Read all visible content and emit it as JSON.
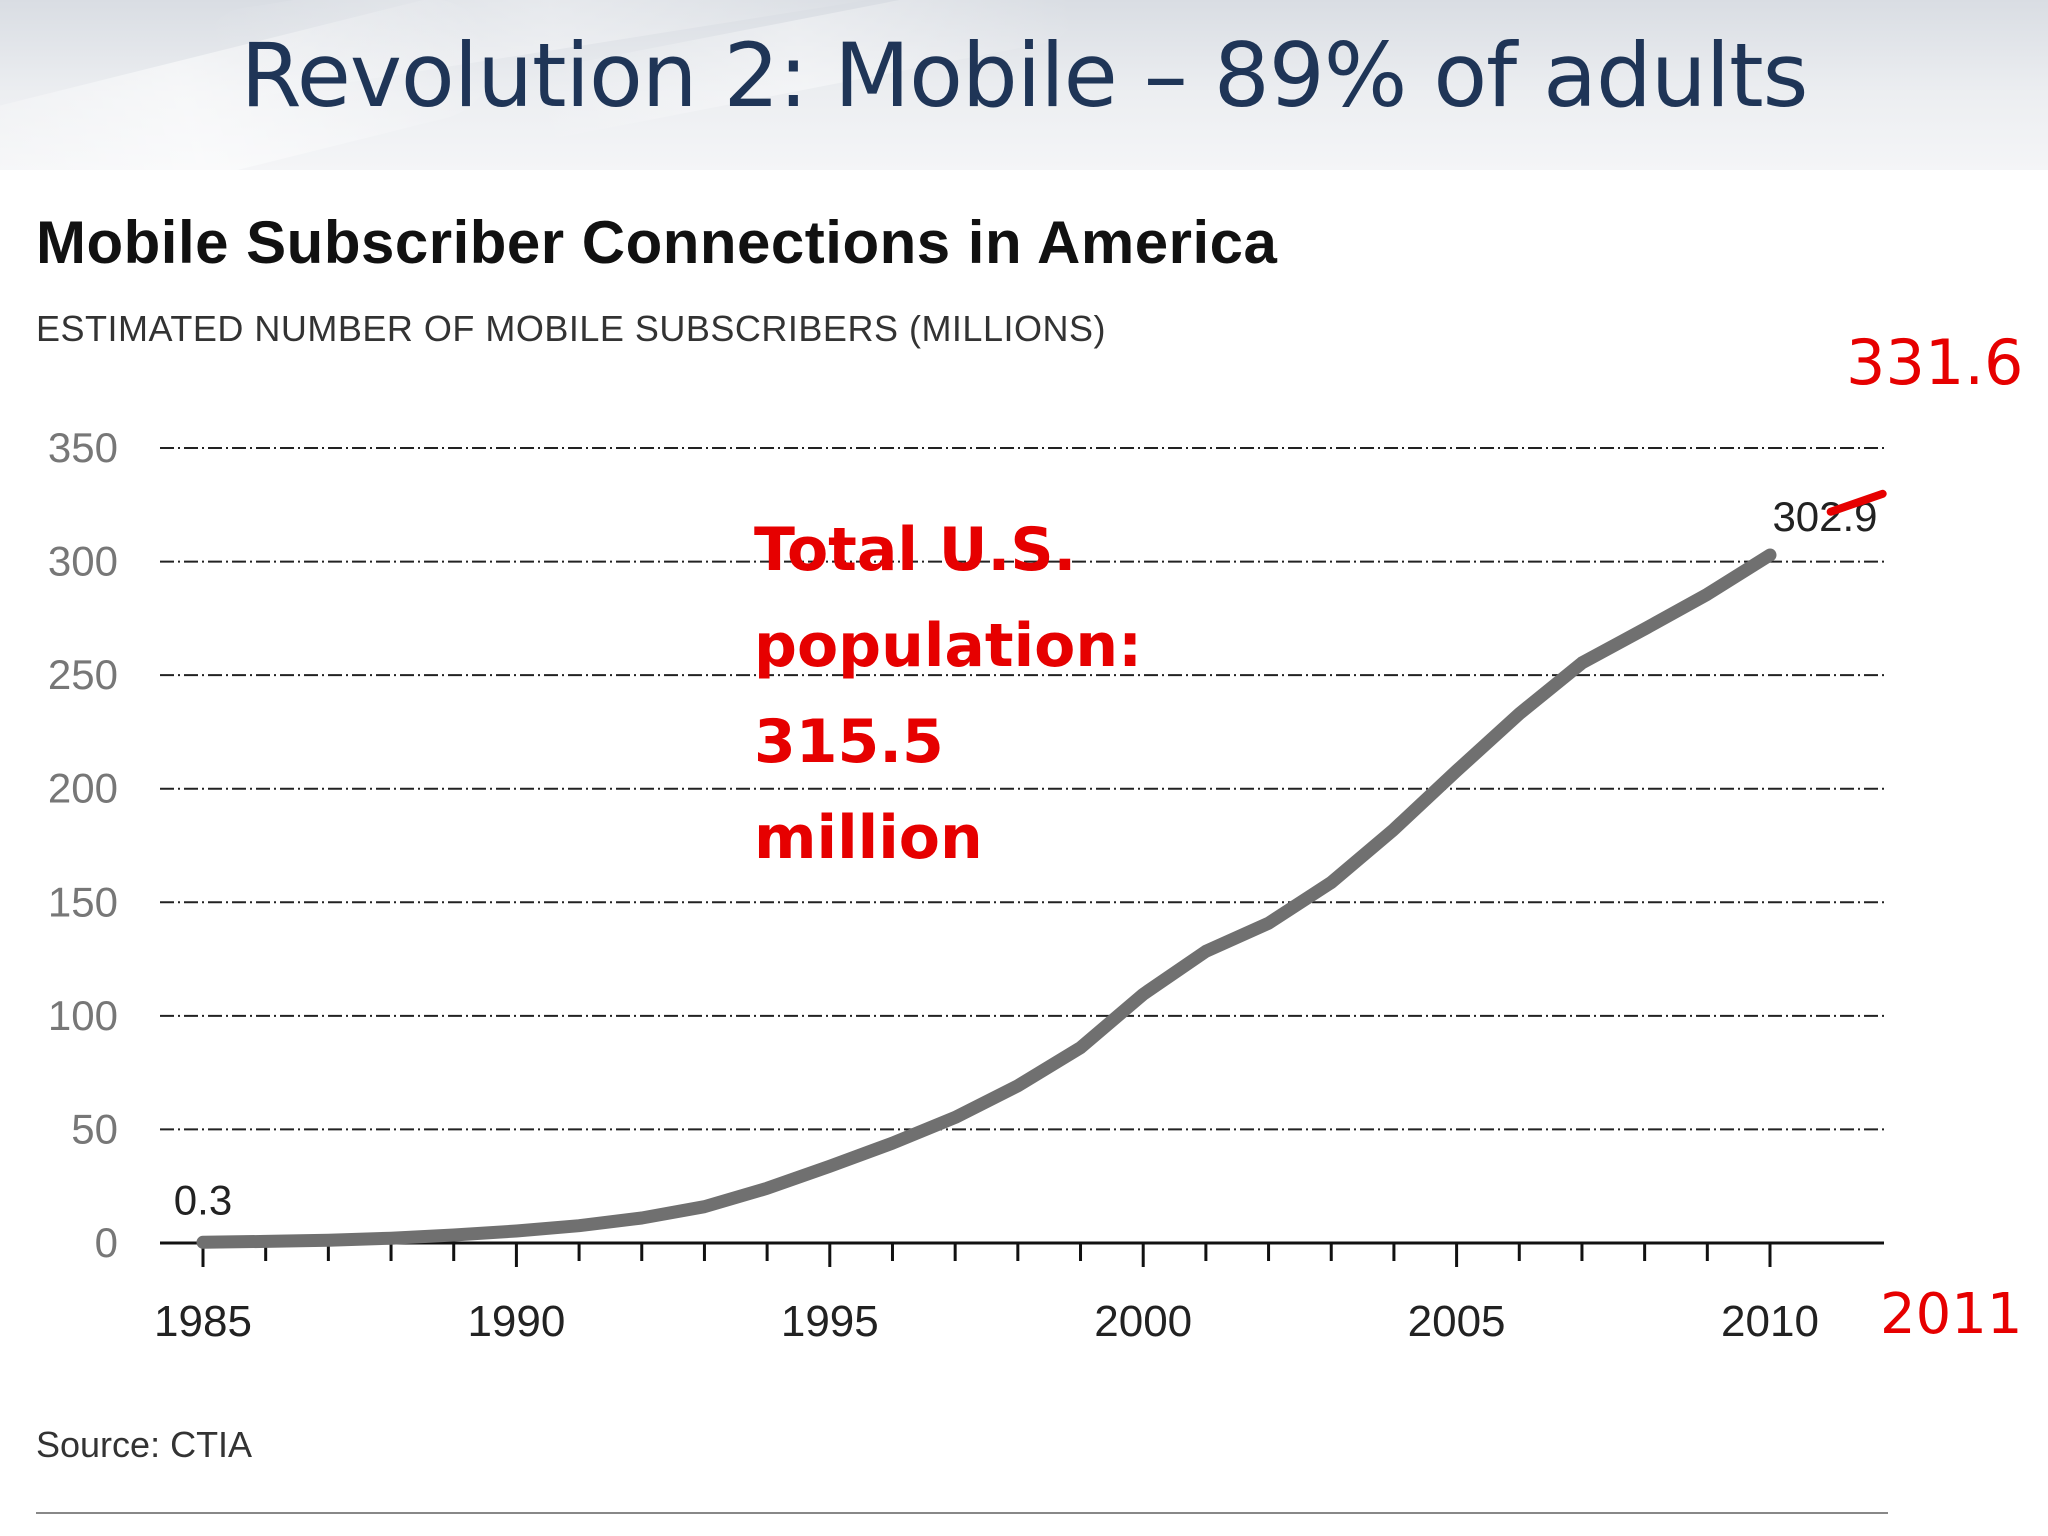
{
  "slide": {
    "title": "Revolution 2: Mobile – 89% of adults"
  },
  "chart_data": {
    "type": "line",
    "title": "Mobile Subscriber Connections in America",
    "subtitle": "ESTIMATED NUMBER OF MOBILE SUBSCRIBERS (MILLIONS)",
    "source": "Source: CTIA",
    "xlabel": "",
    "ylabel": "",
    "xlim": [
      1985,
      2010
    ],
    "ylim": [
      0,
      350
    ],
    "y_ticks": [
      "0",
      "50",
      "100",
      "150",
      "200",
      "250",
      "300",
      "350"
    ],
    "x_tick_labels": [
      "1985",
      "1990",
      "1995",
      "2000",
      "2005",
      "2010"
    ],
    "grid": true,
    "line_color": "#707070",
    "series": [
      {
        "x": [
          1985,
          1986,
          1987,
          1988,
          1989,
          1990,
          1991,
          1992,
          1993,
          1994,
          1995,
          1996,
          1997,
          1998,
          1999,
          2000,
          2001,
          2002,
          2003,
          2004,
          2005,
          2006,
          2007,
          2008,
          2009,
          2010
        ],
        "y": [
          0.3,
          0.7,
          1.2,
          2.1,
          3.5,
          5.3,
          7.6,
          11.0,
          16.0,
          24.1,
          33.8,
          44.0,
          55.3,
          69.2,
          86.0,
          109.5,
          128.4,
          140.8,
          158.7,
          182.1,
          207.9,
          233.0,
          255.4,
          270.3,
          285.6,
          302.9
        ]
      }
    ],
    "data_labels": [
      {
        "text": "0.3",
        "x": 1985,
        "y": 0.3
      },
      {
        "text": "302.9",
        "x": 2010,
        "y": 302.9
      }
    ]
  },
  "annotations": {
    "population": [
      "Total U.S.",
      "population:",
      "315.5",
      "million"
    ],
    "value_2011": {
      "text": "331.6",
      "x": 2011,
      "y": 331.6
    },
    "year_2011": "2011",
    "accent_color": "#e60000"
  }
}
